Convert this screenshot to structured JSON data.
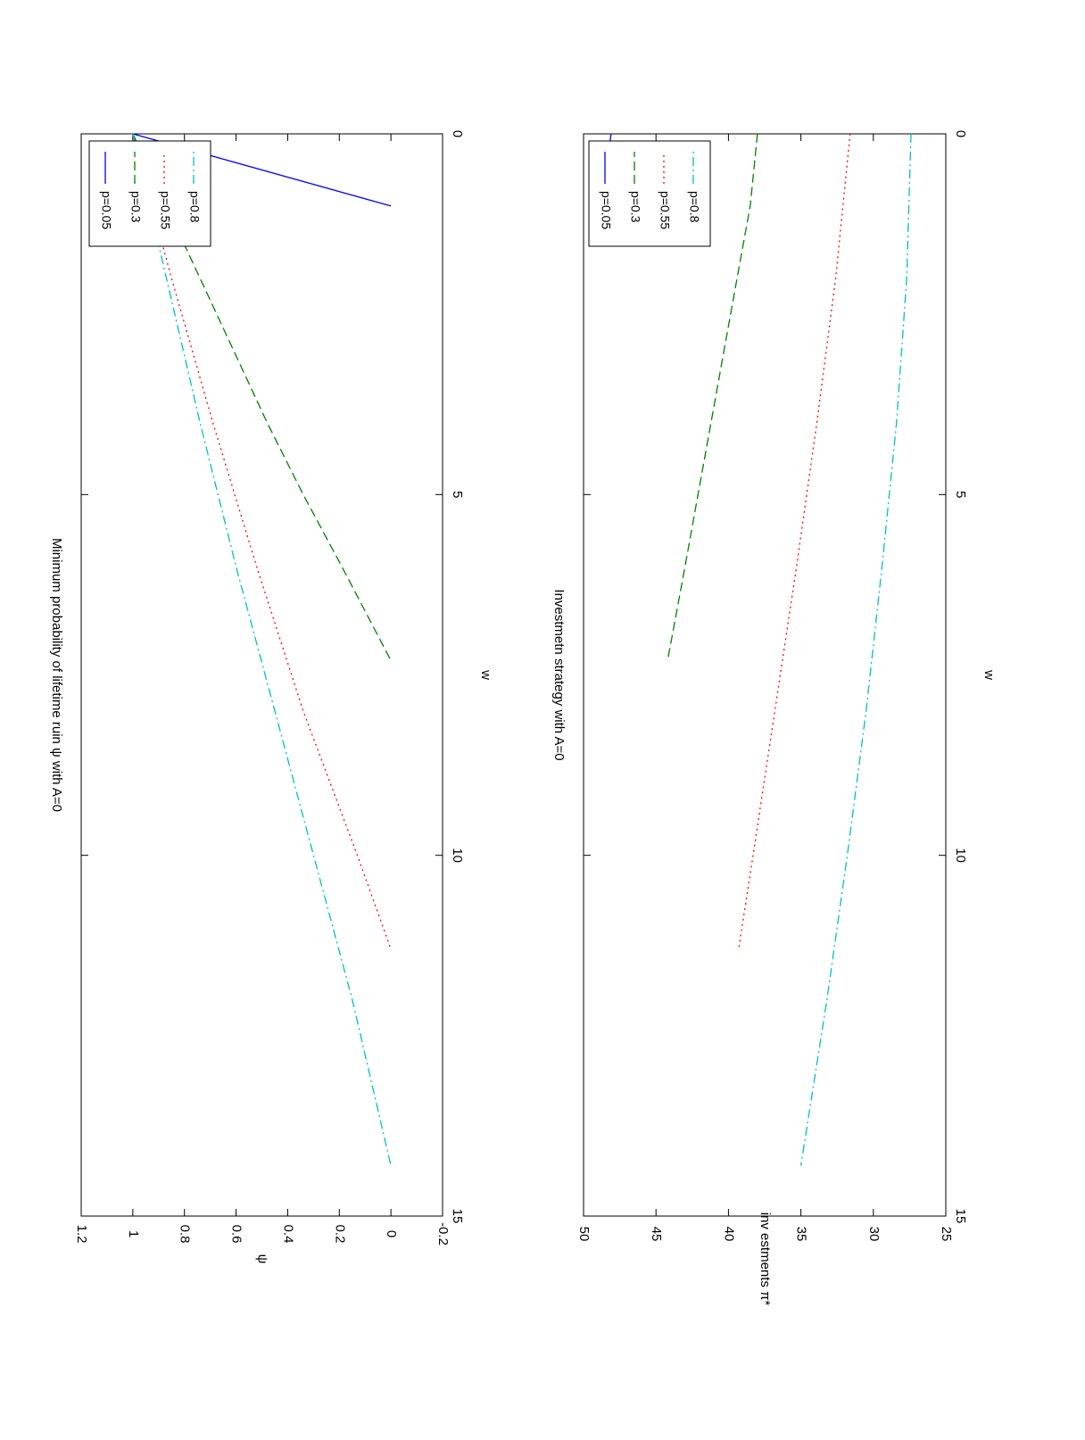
{
  "chart_data": [
    {
      "type": "line",
      "title": "Minimum probability of lifetime ruin ψ with A=0",
      "xlabel": "w",
      "ylabel": "ψ",
      "xlim": [
        0,
        15
      ],
      "ylim": [
        -0.2,
        1.2
      ],
      "xticks": [
        "0",
        "5",
        "10",
        "15"
      ],
      "yticks": [
        "-0.2",
        "0",
        "0.2",
        "0.4",
        "0.6",
        "0.8",
        "1",
        "1.2"
      ],
      "grid": false,
      "legend": "top-right",
      "series": [
        {
          "name": "p=0.05",
          "color": "#0000ff",
          "dash": "solid",
          "x": [
            0,
            1.0
          ],
          "y": [
            1,
            0
          ]
        },
        {
          "name": "p=0.3",
          "color": "#008000",
          "dash": "dashed",
          "x": [
            0,
            1,
            2,
            3,
            4,
            5,
            6,
            7.3
          ],
          "y": [
            1,
            0.87,
            0.74,
            0.61,
            0.48,
            0.34,
            0.19,
            0
          ]
        },
        {
          "name": "p=0.55",
          "color": "#ff0000",
          "dash": "dotted",
          "x": [
            0,
            2,
            4,
            6,
            8,
            10,
            11.3
          ],
          "y": [
            1,
            0.85,
            0.69,
            0.52,
            0.34,
            0.13,
            0
          ]
        },
        {
          "name": "p=0.8",
          "color": "#00bfbf",
          "dash": "dashdot",
          "x": [
            0,
            2,
            4,
            6,
            8,
            10,
            12,
            14.3
          ],
          "y": [
            1,
            0.87,
            0.74,
            0.6,
            0.45,
            0.3,
            0.15,
            0
          ]
        }
      ]
    },
    {
      "type": "line",
      "title": "Investmetn strategy with A=0",
      "xlabel": "w",
      "ylabel": "inv estments π*",
      "xlim": [
        0,
        15
      ],
      "ylim": [
        25,
        50
      ],
      "xticks": [
        "0",
        "5",
        "10",
        "15"
      ],
      "yticks": [
        "25",
        "30",
        "35",
        "40",
        "45",
        "50"
      ],
      "grid": false,
      "legend": "top-right",
      "series": [
        {
          "name": "p=0.05",
          "color": "#0000ff",
          "dash": "solid",
          "x": [
            0,
            1.0
          ],
          "y": [
            48.1,
            48.8
          ]
        },
        {
          "name": "p=0.3",
          "color": "#008000",
          "dash": "dashed",
          "x": [
            0,
            1,
            2,
            3,
            4,
            5,
            6,
            7.3
          ],
          "y": [
            38.0,
            38.5,
            39.4,
            40.3,
            41.2,
            42.1,
            43.0,
            44.2
          ]
        },
        {
          "name": "p=0.55",
          "color": "#ff0000",
          "dash": "dotted",
          "x": [
            0,
            2,
            4,
            6,
            8,
            10,
            11.3
          ],
          "y": [
            31.6,
            32.6,
            33.9,
            35.3,
            36.8,
            38.3,
            39.3
          ]
        },
        {
          "name": "p=0.8",
          "color": "#00bfbf",
          "dash": "dashdot",
          "x": [
            0,
            2,
            4,
            6,
            8,
            10,
            12,
            14.3
          ],
          "y": [
            27.4,
            27.7,
            28.4,
            29.4,
            30.5,
            31.8,
            33.2,
            35.0
          ]
        }
      ]
    }
  ]
}
